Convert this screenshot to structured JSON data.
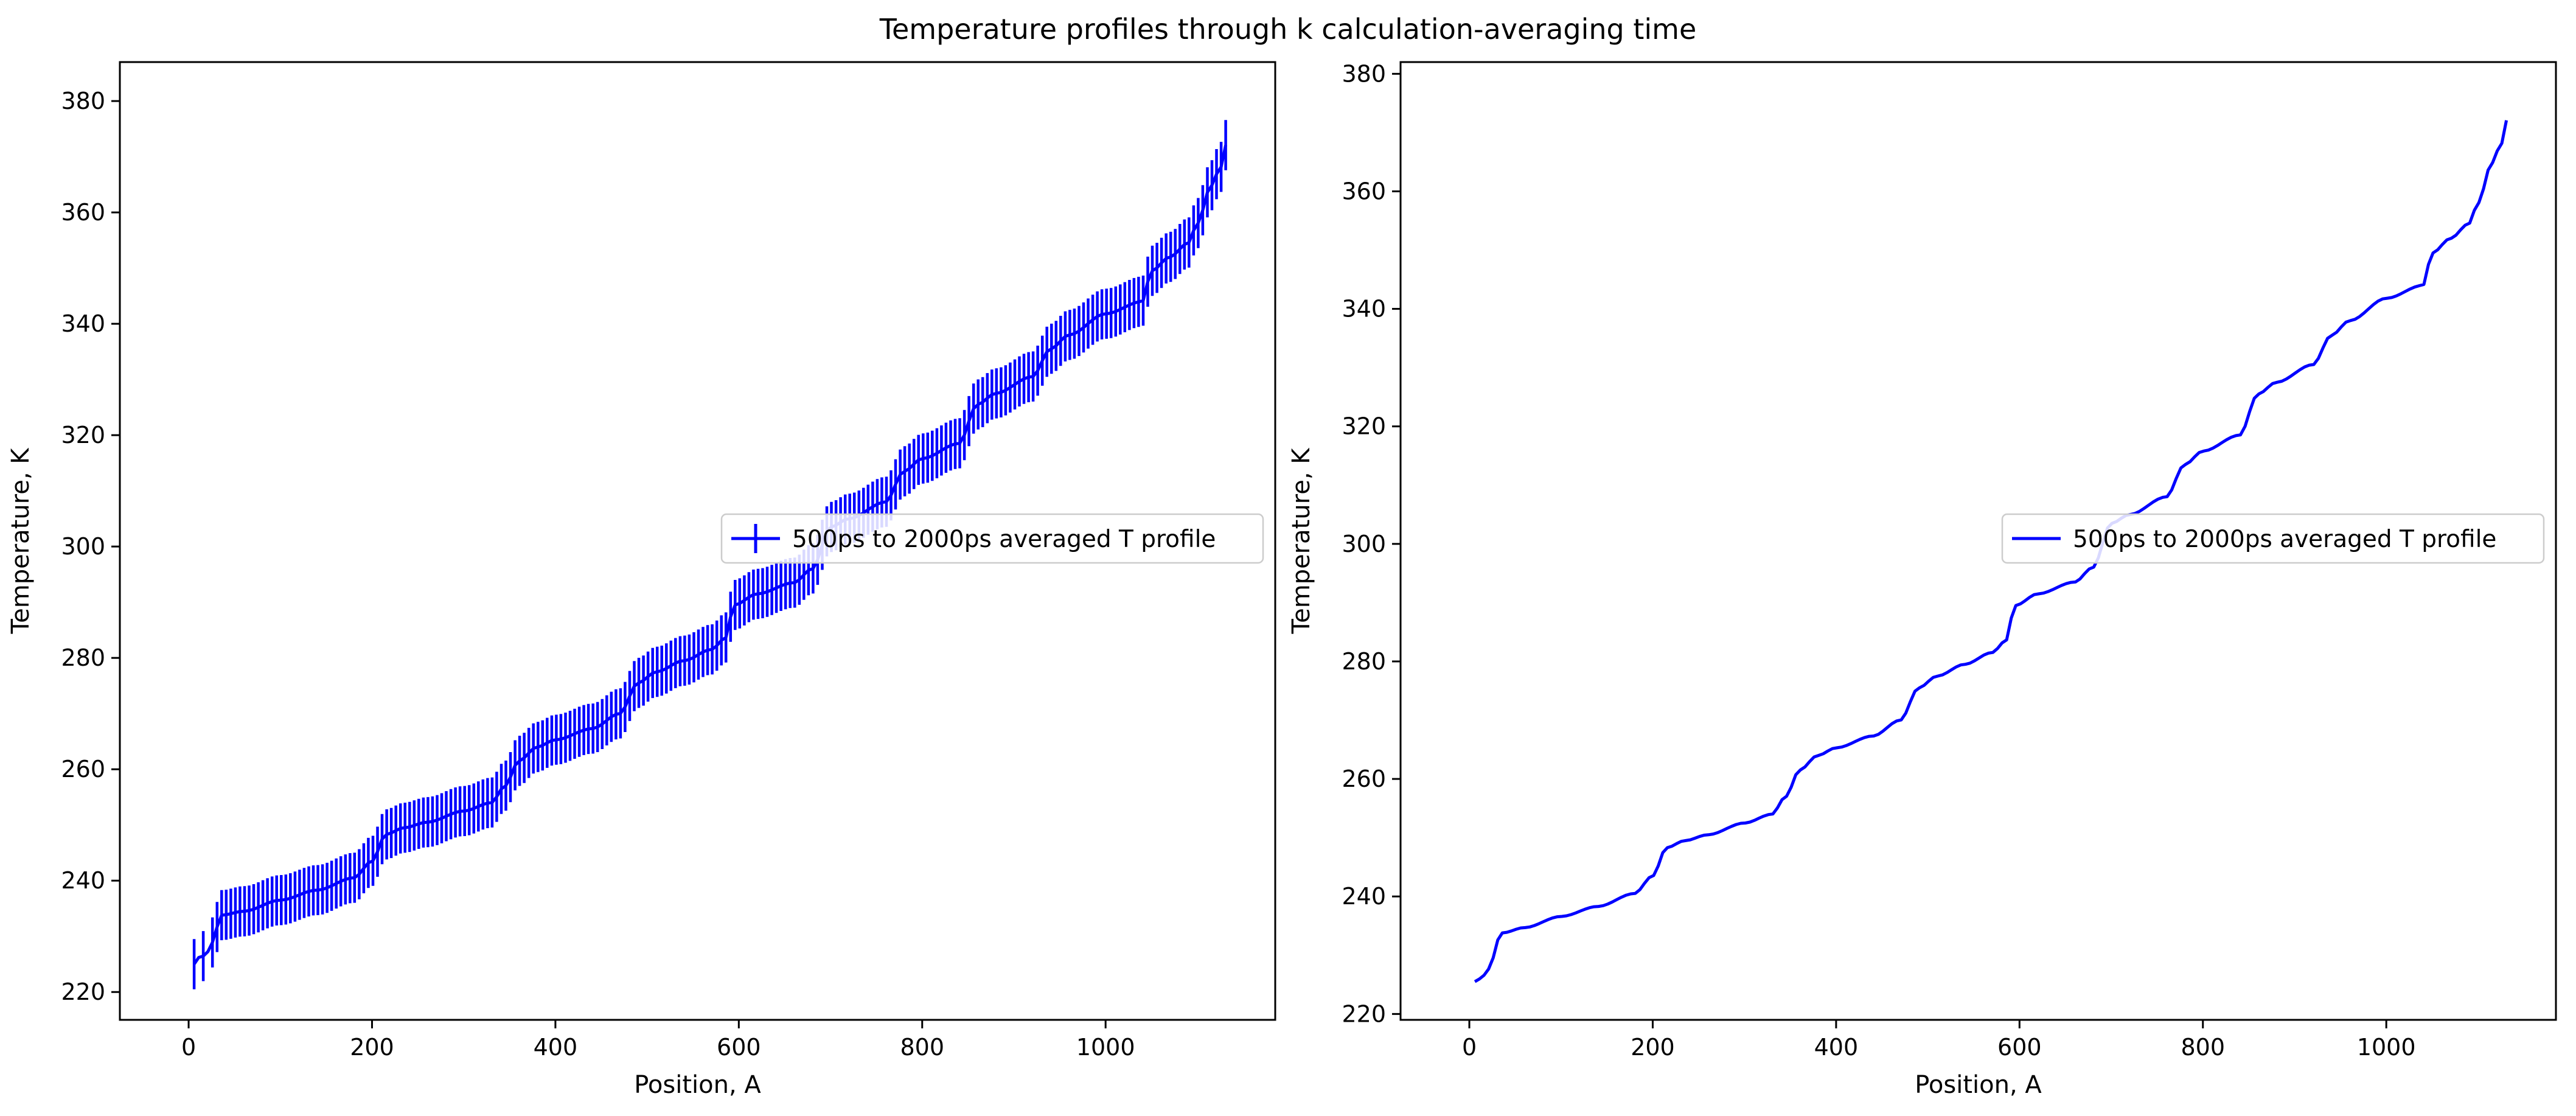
{
  "figure": {
    "suptitle": "Temperature profiles through k calculation-averaging time"
  },
  "colors": {
    "series": "#0000ff",
    "axes": "#000000",
    "legend_border": "#cccccc",
    "background": "#ffffff"
  },
  "chart_data": [
    {
      "type": "line",
      "variant": "errorbar",
      "title": "",
      "xlabel": "Position, A",
      "ylabel": "Temperature, K",
      "xlim": [
        -75,
        1185
      ],
      "ylim": [
        215,
        387
      ],
      "xticks": [
        0,
        200,
        400,
        600,
        800,
        1000
      ],
      "yticks": [
        220,
        240,
        260,
        280,
        300,
        320,
        340,
        360,
        380
      ],
      "grid": false,
      "legend": {
        "placement": "center-right",
        "entries": [
          "500ps to 2000ps averaged T profile"
        ]
      },
      "series": [
        {
          "name": "500ps to 2000ps averaged T profile",
          "x": [
            6,
            12,
            18,
            24,
            30,
            36,
            60,
            100,
            140,
            180,
            200,
            215,
            235,
            260,
            300,
            330,
            345,
            360,
            380,
            400,
            440,
            470,
            490,
            510,
            540,
            570,
            585,
            595,
            620,
            660,
            680,
            700,
            720,
            760,
            780,
            800,
            840,
            860,
            880,
            920,
            940,
            960,
            1000,
            1040,
            1050,
            1070,
            1090,
            1100,
            1115,
            1125,
            1135
          ],
          "y": [
            225,
            226.3,
            226.5,
            228,
            231.5,
            233.8,
            234.5,
            236.5,
            238.3,
            240.5,
            243.5,
            248.3,
            249.5,
            250.5,
            252.5,
            254,
            257,
            261.5,
            264,
            265.3,
            267.3,
            270,
            275.5,
            277.5,
            279.5,
            281.5,
            283.5,
            289.5,
            291.5,
            293.5,
            296,
            303.5,
            305,
            308,
            313.5,
            315.8,
            318.5,
            325.5,
            327.5,
            330.5,
            335.5,
            338,
            341.8,
            344,
            349.5,
            352,
            354.5,
            358,
            364.8,
            368,
            374.3
          ],
          "error": 4.5
        }
      ]
    },
    {
      "type": "line",
      "title": "",
      "xlabel": "Position, A",
      "ylabel": "Temperature, K",
      "xlim": [
        -75,
        1185
      ],
      "ylim": [
        219,
        382
      ],
      "xticks": [
        0,
        200,
        400,
        600,
        800,
        1000
      ],
      "yticks": [
        220,
        240,
        260,
        280,
        300,
        320,
        340,
        360,
        380
      ],
      "grid": false,
      "legend": {
        "placement": "center-right",
        "entries": [
          "500ps to 2000ps averaged T profile"
        ]
      },
      "series": [
        {
          "name": "500ps to 2000ps averaged T profile",
          "x": [
            6,
            12,
            18,
            24,
            30,
            36,
            60,
            100,
            140,
            180,
            200,
            215,
            235,
            260,
            300,
            330,
            345,
            360,
            380,
            400,
            440,
            470,
            490,
            510,
            540,
            570,
            585,
            595,
            620,
            660,
            680,
            700,
            720,
            760,
            780,
            800,
            840,
            860,
            880,
            920,
            940,
            960,
            1000,
            1040,
            1050,
            1070,
            1090,
            1100,
            1115,
            1125,
            1135
          ],
          "y": [
            225.5,
            226,
            226.8,
            228.5,
            232.5,
            233.8,
            234.7,
            236.6,
            238.3,
            240.5,
            243.5,
            248.3,
            249.5,
            250.5,
            252.5,
            254,
            257,
            261.5,
            264,
            265.3,
            267.3,
            270,
            275.5,
            277.5,
            279.5,
            281.5,
            283.5,
            289.5,
            291.5,
            293.5,
            296,
            303.5,
            305,
            308,
            313.5,
            315.8,
            318.5,
            325.5,
            327.5,
            330.5,
            335.5,
            338,
            341.8,
            344,
            349.5,
            352,
            354.5,
            358,
            364.8,
            368,
            374.3
          ]
        }
      ]
    }
  ]
}
